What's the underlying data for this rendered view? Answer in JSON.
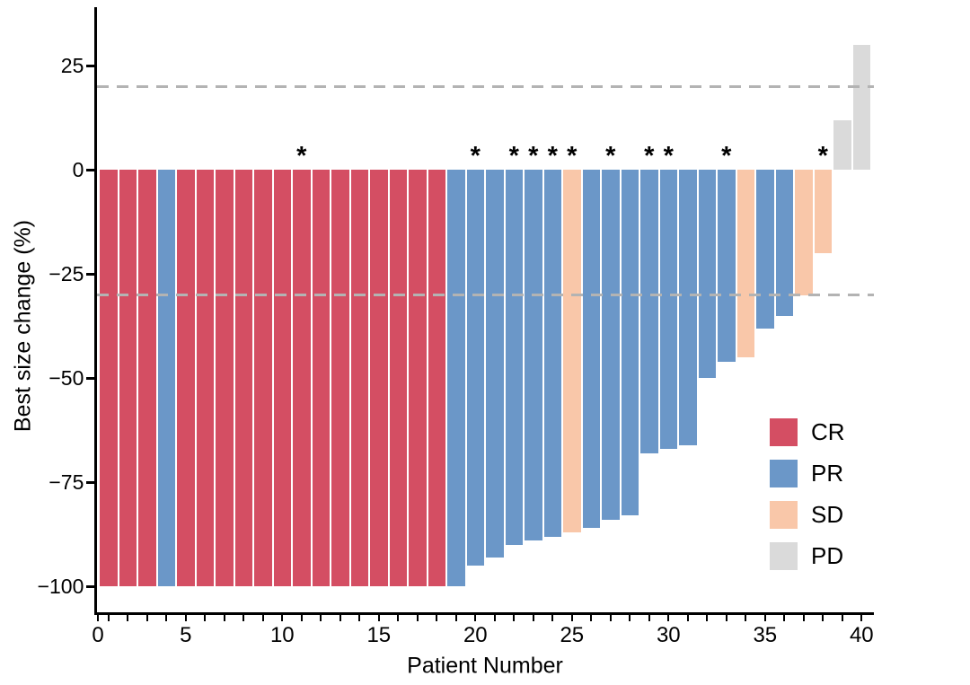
{
  "figure": {
    "background": "#ffffff"
  },
  "chart_data": {
    "type": "bar",
    "variant": "waterfall",
    "title": "",
    "xlabel": "Patient Number",
    "ylabel": "Best size change (%)",
    "ylim": [
      -105,
      38
    ],
    "grid": false,
    "legend_position": "right-middle",
    "x_axis": {
      "labeled_ticks": [
        0,
        5,
        10,
        15,
        20,
        25,
        30,
        35,
        40
      ],
      "minor_tick_every": 1,
      "max_patient": 40
    },
    "y_axis": {
      "ticks": [
        {
          "value": 25,
          "label": "25"
        },
        {
          "value": 0,
          "label": "0"
        },
        {
          "value": -25,
          "label": "−25"
        },
        {
          "value": -50,
          "label": "−50"
        },
        {
          "value": -75,
          "label": "−75"
        },
        {
          "value": -100,
          "label": "−100"
        }
      ]
    },
    "reference_lines": [
      {
        "value": 20,
        "style": "dashed",
        "color": "#b3b3b3"
      },
      {
        "value": -30,
        "style": "dashed",
        "color": "#b3b3b3"
      }
    ],
    "legend": [
      {
        "label": "CR",
        "color": "#d44e63"
      },
      {
        "label": "PR",
        "color": "#6b97c8"
      },
      {
        "label": "SD",
        "color": "#f9c7a9"
      },
      {
        "label": "PD",
        "color": "#dadada"
      }
    ],
    "annotation_marker": "*",
    "patients": [
      {
        "n": 1,
        "value": -100,
        "response": "CR",
        "asterisk": false
      },
      {
        "n": 2,
        "value": -100,
        "response": "CR",
        "asterisk": false
      },
      {
        "n": 3,
        "value": -100,
        "response": "CR",
        "asterisk": false
      },
      {
        "n": 4,
        "value": -100,
        "response": "PR",
        "asterisk": false
      },
      {
        "n": 5,
        "value": -100,
        "response": "CR",
        "asterisk": false
      },
      {
        "n": 6,
        "value": -100,
        "response": "CR",
        "asterisk": false
      },
      {
        "n": 7,
        "value": -100,
        "response": "CR",
        "asterisk": false
      },
      {
        "n": 8,
        "value": -100,
        "response": "CR",
        "asterisk": false
      },
      {
        "n": 9,
        "value": -100,
        "response": "CR",
        "asterisk": false
      },
      {
        "n": 10,
        "value": -100,
        "response": "CR",
        "asterisk": false
      },
      {
        "n": 11,
        "value": -100,
        "response": "CR",
        "asterisk": true
      },
      {
        "n": 12,
        "value": -100,
        "response": "CR",
        "asterisk": false
      },
      {
        "n": 13,
        "value": -100,
        "response": "CR",
        "asterisk": false
      },
      {
        "n": 14,
        "value": -100,
        "response": "CR",
        "asterisk": false
      },
      {
        "n": 15,
        "value": -100,
        "response": "CR",
        "asterisk": false
      },
      {
        "n": 16,
        "value": -100,
        "response": "CR",
        "asterisk": false
      },
      {
        "n": 17,
        "value": -100,
        "response": "CR",
        "asterisk": false
      },
      {
        "n": 18,
        "value": -100,
        "response": "CR",
        "asterisk": false
      },
      {
        "n": 19,
        "value": -100,
        "response": "PR",
        "asterisk": false
      },
      {
        "n": 20,
        "value": -95,
        "response": "PR",
        "asterisk": true
      },
      {
        "n": 21,
        "value": -93,
        "response": "PR",
        "asterisk": false
      },
      {
        "n": 22,
        "value": -90,
        "response": "PR",
        "asterisk": true
      },
      {
        "n": 23,
        "value": -89,
        "response": "PR",
        "asterisk": true
      },
      {
        "n": 24,
        "value": -88,
        "response": "PR",
        "asterisk": true
      },
      {
        "n": 25,
        "value": -87,
        "response": "SD",
        "asterisk": true
      },
      {
        "n": 26,
        "value": -86,
        "response": "PR",
        "asterisk": false
      },
      {
        "n": 27,
        "value": -84,
        "response": "PR",
        "asterisk": true
      },
      {
        "n": 28,
        "value": -83,
        "response": "PR",
        "asterisk": false
      },
      {
        "n": 29,
        "value": -68,
        "response": "PR",
        "asterisk": true
      },
      {
        "n": 30,
        "value": -67,
        "response": "PR",
        "asterisk": true
      },
      {
        "n": 31,
        "value": -66,
        "response": "PR",
        "asterisk": false
      },
      {
        "n": 32,
        "value": -50,
        "response": "PR",
        "asterisk": false
      },
      {
        "n": 33,
        "value": -46,
        "response": "PR",
        "asterisk": true
      },
      {
        "n": 34,
        "value": -45,
        "response": "SD",
        "asterisk": false
      },
      {
        "n": 35,
        "value": -38,
        "response": "PR",
        "asterisk": false
      },
      {
        "n": 36,
        "value": -35,
        "response": "PR",
        "asterisk": false
      },
      {
        "n": 37,
        "value": -30,
        "response": "SD",
        "asterisk": false
      },
      {
        "n": 38,
        "value": -20,
        "response": "SD",
        "asterisk": true
      },
      {
        "n": 39,
        "value": 12,
        "response": "PD",
        "asterisk": false
      },
      {
        "n": 40,
        "value": 30,
        "response": "PD",
        "asterisk": false
      }
    ]
  }
}
